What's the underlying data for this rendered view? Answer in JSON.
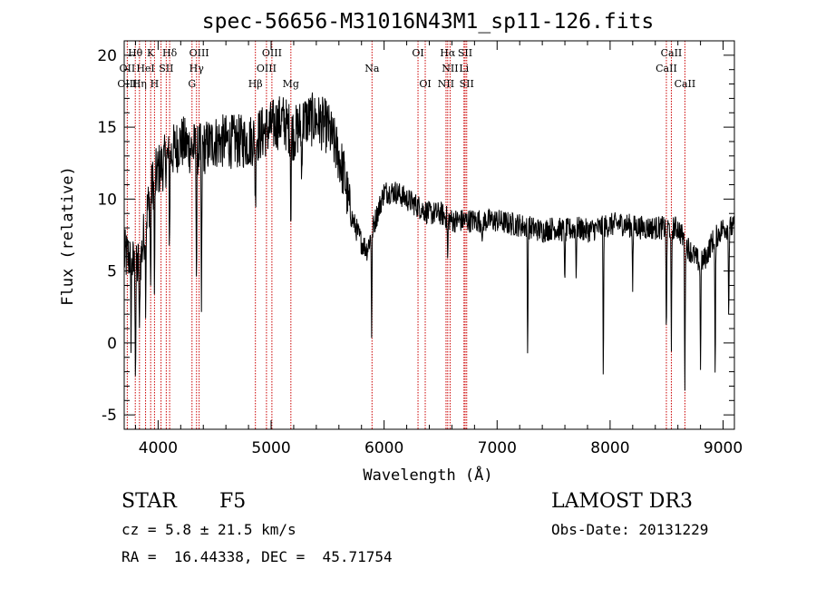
{
  "chart_data": {
    "type": "line",
    "title": "spec-56656-M31016N43M1_sp11-126.fits",
    "xlabel": "Wavelength (Å)",
    "ylabel": "Flux (relative)",
    "xlim": [
      3700,
      9100
    ],
    "ylim": [
      -6,
      21
    ],
    "xticks": [
      4000,
      5000,
      6000,
      7000,
      8000,
      9000
    ],
    "yticks": [
      -5,
      0,
      5,
      10,
      15,
      20
    ],
    "x_minor_step": 200,
    "y_minor_step": 1,
    "series": [
      {
        "name": "flux",
        "continuum": [
          [
            3700,
            6
          ],
          [
            3750,
            6
          ],
          [
            3800,
            5
          ],
          [
            3850,
            6
          ],
          [
            3900,
            9
          ],
          [
            3950,
            11
          ],
          [
            4000,
            12
          ],
          [
            4100,
            13
          ],
          [
            4200,
            14
          ],
          [
            4300,
            13.5
          ],
          [
            4400,
            13.5
          ],
          [
            4500,
            14
          ],
          [
            4600,
            14
          ],
          [
            4700,
            14
          ],
          [
            4800,
            14
          ],
          [
            4900,
            14.5
          ],
          [
            5000,
            15
          ],
          [
            5100,
            15.5
          ],
          [
            5200,
            14.5
          ],
          [
            5300,
            15.5
          ],
          [
            5400,
            15.5
          ],
          [
            5500,
            15
          ],
          [
            5600,
            13
          ],
          [
            5650,
            11.5
          ],
          [
            5700,
            9
          ],
          [
            5800,
            7
          ],
          [
            5850,
            6.5
          ],
          [
            5900,
            8
          ],
          [
            6000,
            10.5
          ],
          [
            6100,
            10.5
          ],
          [
            6200,
            10
          ],
          [
            6300,
            9.5
          ],
          [
            6400,
            9
          ],
          [
            6500,
            9
          ],
          [
            6600,
            8.5
          ],
          [
            6700,
            8.5
          ],
          [
            6800,
            8.5
          ],
          [
            6900,
            8.5
          ],
          [
            7000,
            8.5
          ],
          [
            7100,
            8.3
          ],
          [
            7200,
            8.2
          ],
          [
            7300,
            8.0
          ],
          [
            7400,
            7.8
          ],
          [
            7500,
            8.0
          ],
          [
            7600,
            7.8
          ],
          [
            7700,
            8.0
          ],
          [
            7800,
            7.8
          ],
          [
            7900,
            8.0
          ],
          [
            8000,
            8.2
          ],
          [
            8100,
            8.3
          ],
          [
            8200,
            8.1
          ],
          [
            8300,
            8.0
          ],
          [
            8400,
            8.0
          ],
          [
            8500,
            8.0
          ],
          [
            8600,
            8.0
          ],
          [
            8700,
            6.5
          ],
          [
            8800,
            5.5
          ],
          [
            8850,
            6
          ],
          [
            8900,
            7
          ],
          [
            9000,
            8
          ],
          [
            9100,
            8
          ]
        ],
        "absorption_lines": [
          [
            3760,
            5
          ],
          [
            3800,
            7
          ],
          [
            3835,
            6
          ],
          [
            3890,
            5
          ],
          [
            3934,
            7
          ],
          [
            3968,
            8
          ],
          [
            4101,
            6
          ],
          [
            4340,
            9
          ],
          [
            4384,
            12
          ],
          [
            4861,
            5
          ],
          [
            5175,
            6
          ],
          [
            5270,
            4
          ],
          [
            5890,
            7
          ],
          [
            6563,
            3
          ],
          [
            6870,
            2
          ],
          [
            7270,
            9
          ],
          [
            7600,
            4
          ],
          [
            7700,
            3
          ],
          [
            7940,
            10
          ],
          [
            8200,
            4
          ],
          [
            8498,
            8
          ],
          [
            8542,
            9
          ],
          [
            8662,
            10
          ],
          [
            8800,
            7
          ],
          [
            8930,
            10
          ],
          [
            9050,
            6
          ]
        ],
        "noise_amplitude": 1.2,
        "sampling_step": 3
      }
    ],
    "line_markers": {
      "positions": [
        3727,
        3798,
        3835,
        3889,
        3934,
        3968,
        4026,
        4072,
        4102,
        4300,
        4340,
        4363,
        4861,
        4959,
        5007,
        5175,
        5893,
        6300,
        6364,
        6548,
        6563,
        6584,
        6707,
        6717,
        6731,
        8498,
        8542,
        8662
      ],
      "color": "#cc0000",
      "style": "dotted"
    },
    "line_labels": [
      {
        "text": "Hθ",
        "wl": 3798,
        "row": 1
      },
      {
        "text": "K",
        "wl": 3934,
        "row": 1
      },
      {
        "text": "Hδ",
        "wl": 4102,
        "row": 1
      },
      {
        "text": "OIII",
        "wl": 4363,
        "row": 1
      },
      {
        "text": "OIII",
        "wl": 5007,
        "row": 1
      },
      {
        "text": "OI",
        "wl": 6300,
        "row": 1
      },
      {
        "text": "Hα",
        "wl": 6563,
        "row": 1
      },
      {
        "text": "SII",
        "wl": 6717,
        "row": 1
      },
      {
        "text": "CaII",
        "wl": 8542,
        "row": 1
      },
      {
        "text": "OII",
        "wl": 3727,
        "row": 2
      },
      {
        "text": "HeI",
        "wl": 3889,
        "row": 2
      },
      {
        "text": "SII",
        "wl": 4072,
        "row": 2
      },
      {
        "text": "Hγ",
        "wl": 4340,
        "row": 2
      },
      {
        "text": "OIII",
        "wl": 4959,
        "row": 2
      },
      {
        "text": "Na",
        "wl": 5893,
        "row": 2
      },
      {
        "text": "NII",
        "wl": 6584,
        "row": 2
      },
      {
        "text": "Li",
        "wl": 6707,
        "row": 2
      },
      {
        "text": "CaII",
        "wl": 8498,
        "row": 2
      },
      {
        "text": "OIII",
        "wl": 3727,
        "row": 3
      },
      {
        "text": "Hη",
        "wl": 3835,
        "row": 3
      },
      {
        "text": "H",
        "wl": 3968,
        "row": 3
      },
      {
        "text": "G",
        "wl": 4300,
        "row": 3
      },
      {
        "text": "Hβ",
        "wl": 4861,
        "row": 3
      },
      {
        "text": "Mg",
        "wl": 5175,
        "row": 3
      },
      {
        "text": "OI",
        "wl": 6364,
        "row": 3
      },
      {
        "text": "NII",
        "wl": 6548,
        "row": 3
      },
      {
        "text": "SII",
        "wl": 6731,
        "row": 3
      },
      {
        "text": "CaII",
        "wl": 8662,
        "row": 3
      }
    ]
  },
  "info": {
    "object_class": "STAR",
    "subclass": "F5",
    "cz": "cz = 5.8 ± 21.5 km/s",
    "coords": "RA =  16.44338, DEC =  45.71754",
    "survey": "LAMOST DR3",
    "obs_date": "Obs-Date: 20131229"
  }
}
